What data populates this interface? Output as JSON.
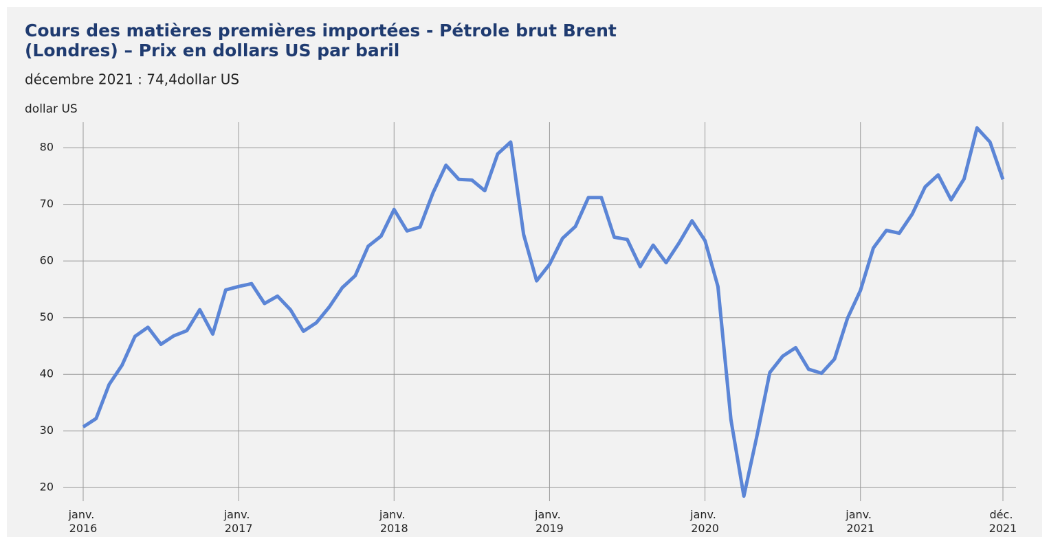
{
  "chart_data": {
    "type": "line",
    "title": "Cours des matières premières importées - Pétrole brut Brent",
    "title_line2": "(Londres) – Prix en dollars US par baril",
    "subtitle": "décembre 2021 : 74,4dollar US",
    "y_label": "dollar US",
    "categories": [
      "janv. 2016",
      null,
      null,
      null,
      null,
      null,
      null,
      null,
      null,
      null,
      null,
      null,
      "janv. 2017",
      null,
      null,
      null,
      null,
      null,
      null,
      null,
      null,
      null,
      null,
      null,
      "janv. 2018",
      null,
      null,
      null,
      null,
      null,
      null,
      null,
      null,
      null,
      null,
      null,
      "janv. 2019",
      null,
      null,
      null,
      null,
      null,
      null,
      null,
      null,
      null,
      null,
      null,
      "janv. 2020",
      null,
      null,
      null,
      null,
      null,
      null,
      null,
      null,
      null,
      null,
      null,
      "janv. 2021",
      null,
      null,
      null,
      null,
      null,
      null,
      null,
      null,
      null,
      null,
      "déc. 2021"
    ],
    "series": [
      {
        "name": "Pétrole brut Brent",
        "color": "#5b85d6",
        "values": [
          30.7,
          32.2,
          38.2,
          41.6,
          46.7,
          48.3,
          45.3,
          46.8,
          47.7,
          51.4,
          47.1,
          54.9,
          55.5,
          56.0,
          52.5,
          53.8,
          51.4,
          47.6,
          49.1,
          51.9,
          55.3,
          57.4,
          62.6,
          64.4,
          69.1,
          65.3,
          66.0,
          72.0,
          76.9,
          74.4,
          74.3,
          72.4,
          78.9,
          81.0,
          64.7,
          56.5,
          59.4,
          64.0,
          66.1,
          71.2,
          71.2,
          64.2,
          63.8,
          59.0,
          62.8,
          59.7,
          63.2,
          67.1,
          63.6,
          55.5,
          32.0,
          18.5,
          29.0,
          40.3,
          43.2,
          44.7,
          40.9,
          40.2,
          42.7,
          49.9,
          54.8,
          62.3,
          65.4,
          64.9,
          68.3,
          73.1,
          75.2,
          70.8,
          74.5,
          83.5,
          81.0,
          74.4
        ]
      }
    ],
    "ylim": [
      17,
      84.5
    ],
    "yticks": [
      20,
      30,
      40,
      50,
      60,
      70,
      80
    ],
    "grid": true
  }
}
